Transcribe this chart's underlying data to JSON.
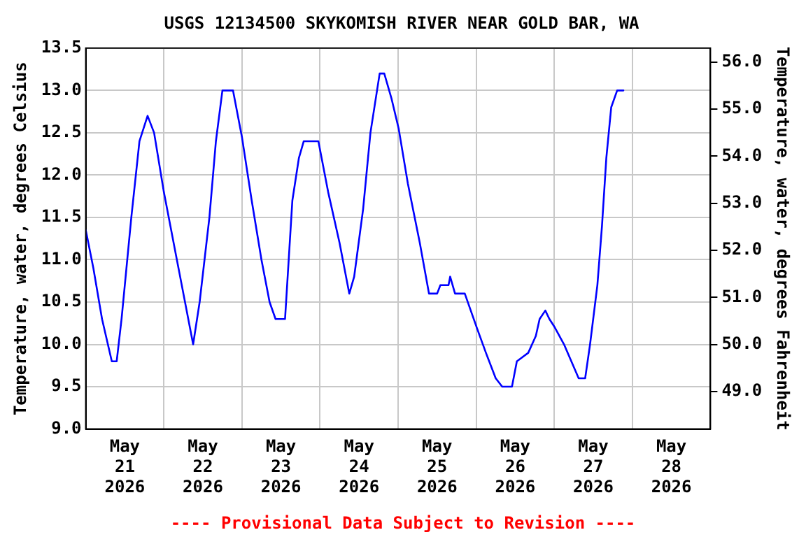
{
  "chart_data": {
    "type": "line",
    "title": "USGS 12134500 SKYKOMISH RIVER NEAR GOLD BAR, WA",
    "ylabel": "Temperature, water, degrees Celsius",
    "y2label": "Temperature, water, degrees Fahrenheit",
    "annotations": [
      "---- Provisional Data Subject to Revision ----"
    ],
    "x": [
      "2026-05-21T00:00",
      "2026-05-21T02:20",
      "2026-05-21T05:00",
      "2026-05-21T08:00",
      "2026-05-21T09:30",
      "2026-05-21T11:00",
      "2026-05-21T14:00",
      "2026-05-21T16:30",
      "2026-05-21T19:00",
      "2026-05-21T21:00",
      "2026-05-22T00:00",
      "2026-05-22T04:00",
      "2026-05-22T07:00",
      "2026-05-22T09:00",
      "2026-05-22T11:00",
      "2026-05-22T14:00",
      "2026-05-22T16:00",
      "2026-05-22T18:00",
      "2026-05-22T21:15",
      "2026-05-23T00:00",
      "2026-05-23T03:00",
      "2026-05-23T06:00",
      "2026-05-23T08:30",
      "2026-05-23T10:20",
      "2026-05-23T13:15",
      "2026-05-23T15:30",
      "2026-05-23T17:30",
      "2026-05-23T19:00",
      "2026-05-23T23:30",
      "2026-05-24T02:30",
      "2026-05-24T06:00",
      "2026-05-24T09:00",
      "2026-05-24T10:30",
      "2026-05-24T13:15",
      "2026-05-24T15:30",
      "2026-05-24T18:20",
      "2026-05-24T19:45",
      "2026-05-24T22:00",
      "2026-05-25T00:10",
      "2026-05-25T03:00",
      "2026-05-25T06:40",
      "2026-05-25T09:30",
      "2026-05-25T12:00",
      "2026-05-25T13:00",
      "2026-05-25T15:30",
      "2026-05-25T16:00",
      "2026-05-25T17:30",
      "2026-05-25T20:30",
      "2026-05-26T00:10",
      "2026-05-26T03:00",
      "2026-05-26T06:00",
      "2026-05-26T08:00",
      "2026-05-26T11:00",
      "2026-05-26T12:30",
      "2026-05-26T16:00",
      "2026-05-26T18:20",
      "2026-05-26T19:30",
      "2026-05-26T21:15",
      "2026-05-26T22:30",
      "2026-05-27T00:10",
      "2026-05-27T03:00",
      "2026-05-27T05:15",
      "2026-05-27T07:30",
      "2026-05-27T09:30",
      "2026-05-27T11:00",
      "2026-05-27T13:15",
      "2026-05-27T14:40",
      "2026-05-27T16:00",
      "2026-05-27T17:30",
      "2026-05-27T19:20",
      "2026-05-27T21:15"
    ],
    "series": [
      {
        "color": "#0000ff",
        "values": [
          11.35,
          10.9,
          10.3,
          9.8,
          9.8,
          10.3,
          11.5,
          12.4,
          12.7,
          12.5,
          11.8,
          11.0,
          10.4,
          10.0,
          10.5,
          11.5,
          12.4,
          13.0,
          13.0,
          12.45,
          11.7,
          11.0,
          10.5,
          10.3,
          10.3,
          11.7,
          12.2,
          12.4,
          12.4,
          11.8,
          11.2,
          10.6,
          10.8,
          11.6,
          12.5,
          13.2,
          13.2,
          12.9,
          12.55,
          11.9,
          11.2,
          10.6,
          10.6,
          10.7,
          10.7,
          10.8,
          10.6,
          10.6,
          10.2,
          9.9,
          9.6,
          9.5,
          9.5,
          9.8,
          9.9,
          10.1,
          10.3,
          10.4,
          10.3,
          10.2,
          10.0,
          9.8,
          9.6,
          9.6,
          10.0,
          10.7,
          11.4,
          12.2,
          12.8,
          13.0,
          13.0
        ]
      }
    ],
    "xlim": [
      "2026-05-21",
      "2026-05-29"
    ],
    "xticks": [
      {
        "value": "2026-05-21T12:00",
        "label": "May 21 2026"
      },
      {
        "value": "2026-05-22",
        "label": null
      },
      {
        "value": "2026-05-22T12:00",
        "label": "May 22 2026"
      },
      {
        "value": "2026-05-23",
        "label": null
      },
      {
        "value": "2026-05-23T12:00",
        "label": "May 23 2026"
      },
      {
        "value": "2026-05-24",
        "label": null
      },
      {
        "value": "2026-05-24T12:00",
        "label": "May 24 2026"
      },
      {
        "value": "2026-05-25",
        "label": null
      },
      {
        "value": "2026-05-25T12:00",
        "label": "May 25 2026"
      },
      {
        "value": "2026-05-26",
        "label": null
      },
      {
        "value": "2026-05-26T12:00",
        "label": "May 26 2026"
      },
      {
        "value": "2026-05-27",
        "label": null
      },
      {
        "value": "2026-05-27T12:00",
        "label": "May 27 2026"
      },
      {
        "value": "2026-05-28",
        "label": null
      },
      {
        "value": "2026-05-28T12:00",
        "label": "May 28 2026"
      }
    ],
    "ylim": [
      9.0,
      13.5
    ],
    "yticks": [
      {
        "value": 9,
        "label": "9.0"
      },
      {
        "value": 9.5,
        "label": "9.5"
      },
      {
        "value": 10,
        "label": "10.0"
      },
      {
        "value": 10.5,
        "label": "10.5"
      },
      {
        "value": 11,
        "label": "11.0"
      },
      {
        "value": 11.5,
        "label": "11.5"
      },
      {
        "value": 12,
        "label": "12.0"
      },
      {
        "value": 12.5,
        "label": "12.5"
      },
      {
        "value": 13,
        "label": "13.0"
      },
      {
        "value": 13.5,
        "label": "13.5"
      }
    ],
    "y2lim": [
      48.2,
      56.3
    ],
    "y2ticks": [
      {
        "value": 49,
        "label": "49.0"
      },
      {
        "value": 50,
        "label": "50.0"
      },
      {
        "value": 51,
        "label": "51.0"
      },
      {
        "value": 52,
        "label": "52.0"
      },
      {
        "value": 53,
        "label": "53.0"
      },
      {
        "value": 54,
        "label": "54.0"
      },
      {
        "value": 55,
        "label": "55.0"
      },
      {
        "value": 56,
        "label": "56.0"
      }
    ],
    "grid": true,
    "legend": false,
    "marker": "none",
    "line_style": "solid"
  }
}
